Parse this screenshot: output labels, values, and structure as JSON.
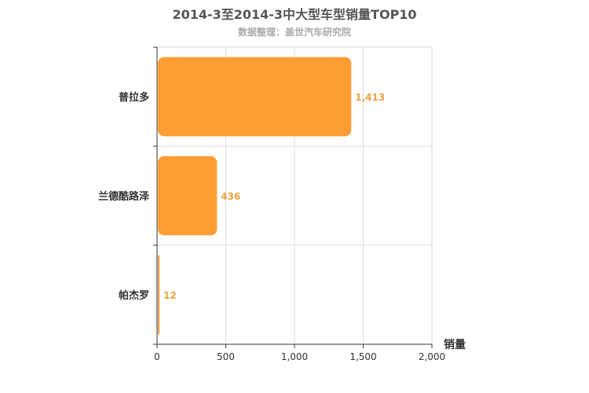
{
  "chart_data": {
    "type": "bar",
    "orientation": "horizontal",
    "title": "2014-3至2014-3中大型车型销量TOP10",
    "subtitle": "数据整理：盖世汽车研究院",
    "categories": [
      "普拉多",
      "兰德酷路泽",
      "帕杰罗"
    ],
    "values": [
      1413,
      436,
      12
    ],
    "value_labels": [
      "1,413",
      "436",
      "12"
    ],
    "xlabel": "销量",
    "ylabel": "",
    "xlim": [
      0,
      2000
    ],
    "x_ticks": [
      "0",
      "500",
      "1,000",
      "1,500",
      "2,000"
    ],
    "grid": true,
    "bar_color": "#ff9d35"
  }
}
